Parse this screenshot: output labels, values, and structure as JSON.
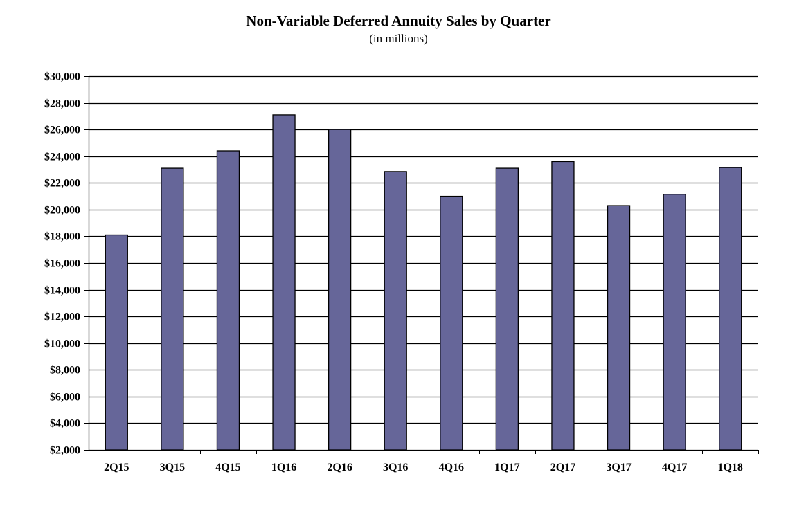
{
  "chart_data": {
    "type": "bar",
    "title": "Non-Variable Deferred Annuity Sales by Quarter",
    "subtitle": "(in millions)",
    "xlabel": "",
    "ylabel": "",
    "categories": [
      "2Q15",
      "3Q15",
      "4Q15",
      "1Q16",
      "2Q16",
      "3Q16",
      "4Q16",
      "1Q17",
      "2Q17",
      "3Q17",
      "4Q17",
      "1Q18"
    ],
    "values": [
      18100,
      23100,
      24400,
      27100,
      26000,
      22850,
      21000,
      23100,
      23600,
      20300,
      21150,
      23150
    ],
    "ylim": [
      2000,
      30000
    ],
    "yticks": [
      2000,
      4000,
      6000,
      8000,
      10000,
      12000,
      14000,
      16000,
      18000,
      20000,
      22000,
      24000,
      26000,
      28000,
      30000
    ],
    "ytick_labels": [
      "$2,000",
      "$4,000",
      "$6,000",
      "$8,000",
      "$10,000",
      "$12,000",
      "$14,000",
      "$16,000",
      "$18,000",
      "$20,000",
      "$22,000",
      "$24,000",
      "$26,000",
      "$28,000",
      "$30,000"
    ],
    "grid": true,
    "legend": "none",
    "bar_color": "#666699"
  }
}
